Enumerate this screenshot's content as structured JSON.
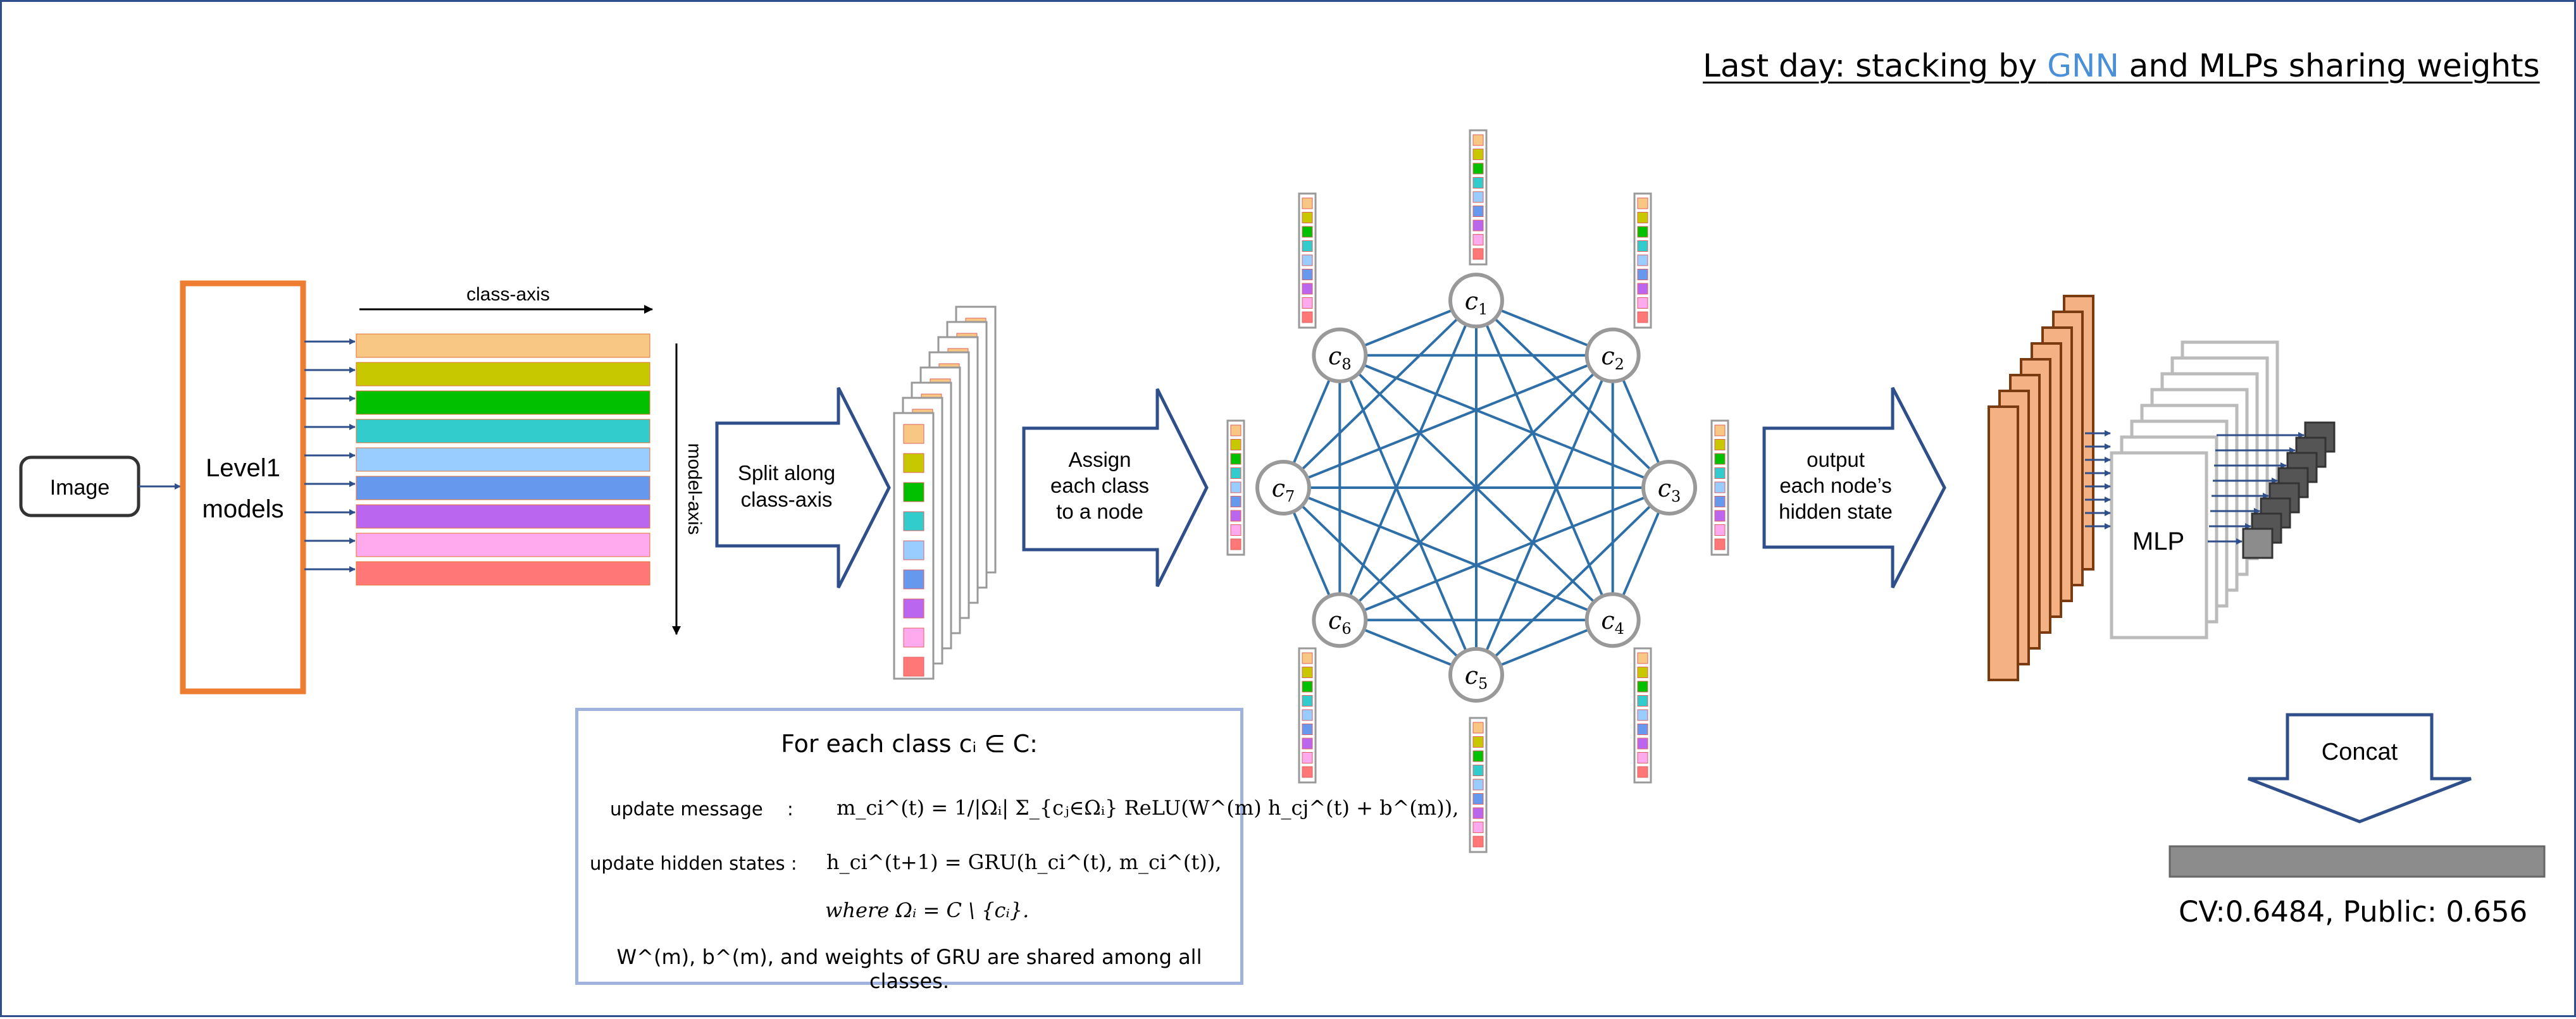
{
  "title": {
    "prefix": "Last day: stacking by ",
    "highlight": "GNN",
    "suffix": " and MLPs sharing weights"
  },
  "labels": {
    "image": "Image",
    "level1_line1": "Level1",
    "level1_line2": "models",
    "class_axis": "class-axis",
    "model_axis": "model-axis",
    "split_line1": "Split along",
    "split_line2": "class-axis",
    "assign_line1": "Assign",
    "assign_line2": "each class",
    "assign_line3": "to a node",
    "output_line1": "output",
    "output_line2": "each node’s",
    "output_line3": "hidden state",
    "mlp": "MLP",
    "concat": "Concat"
  },
  "nodes": [
    "c1",
    "c2",
    "c3",
    "c4",
    "c5",
    "c6",
    "c7",
    "c8"
  ],
  "formula": {
    "heading": "For each class cᵢ ∈ C:",
    "update_message_label": "update message",
    "update_hidden_label": "update hidden states :",
    "colon": ":",
    "message_eq": "m_ci^(t) = 1/|Ωᵢ| Σ_{cⱼ∈Ωᵢ} ReLU(W^(m) h_cj^(t) + b^(m)),",
    "hidden_eq": "h_ci^(t+1) = GRU(h_ci^(t), m_ci^(t)),",
    "where_eq": "where Ωᵢ = C \\ {cᵢ}.",
    "footnote": "W^(m), b^(m), and weights of GRU are shared among all classes."
  },
  "score": "CV:0.6484, Public: 0.656",
  "colors": {
    "class_palette": [
      "#f9c784",
      "#c8c800",
      "#00c000",
      "#33cccc",
      "#99ccff",
      "#6699ee",
      "#bb66ee",
      "#ffaaee",
      "#ff7777"
    ],
    "border_blue": "#2f4f8a",
    "edge_blue": "#2e6fa8",
    "level1_orange": "#ed7d31",
    "feature_orange": "#f4b183",
    "node_gray": "#999999"
  }
}
